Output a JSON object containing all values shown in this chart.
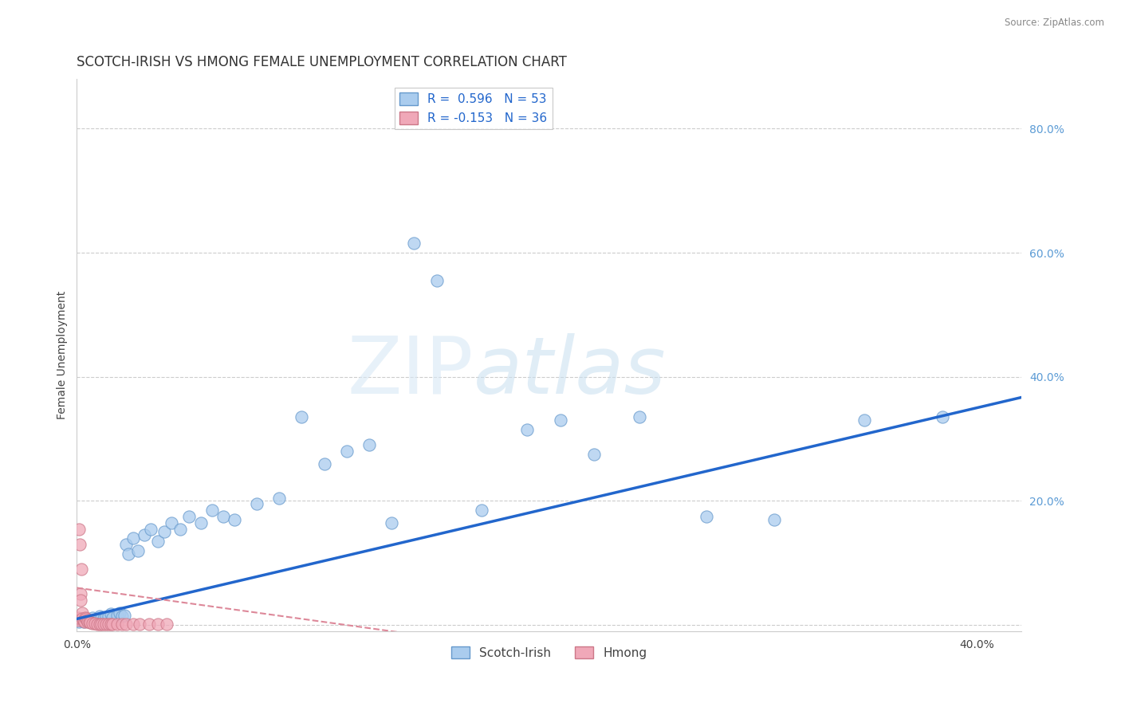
{
  "title": "SCOTCH-IRISH VS HMONG FEMALE UNEMPLOYMENT CORRELATION CHART",
  "source": "Source: ZipAtlas.com",
  "ylabel": "Female Unemployment",
  "xlim": [
    0.0,
    0.42
  ],
  "ylim": [
    -0.01,
    0.88
  ],
  "background_color": "#ffffff",
  "grid_color": "#cccccc",
  "scotch_irish_color": "#aaccee",
  "hmong_color": "#f0a8b8",
  "scotch_irish_edge": "#6699cc",
  "hmong_edge": "#cc7788",
  "trend_blue": "#2266cc",
  "trend_pink": "#dd8899",
  "R_blue": 0.596,
  "N_blue": 53,
  "R_pink": -0.153,
  "N_pink": 36,
  "title_fontsize": 12,
  "axis_label_fontsize": 10,
  "tick_fontsize": 10,
  "legend_fontsize": 11,
  "scotch_irish_x": [
    0.001,
    0.002,
    0.003,
    0.004,
    0.005,
    0.006,
    0.007,
    0.008,
    0.009,
    0.01,
    0.011,
    0.012,
    0.013,
    0.014,
    0.015,
    0.016,
    0.018,
    0.019,
    0.02,
    0.021,
    0.022,
    0.023,
    0.025,
    0.027,
    0.03,
    0.033,
    0.036,
    0.039,
    0.042,
    0.046,
    0.05,
    0.055,
    0.06,
    0.065,
    0.07,
    0.08,
    0.09,
    0.1,
    0.11,
    0.12,
    0.13,
    0.14,
    0.15,
    0.16,
    0.18,
    0.2,
    0.215,
    0.23,
    0.25,
    0.28,
    0.31,
    0.35,
    0.385
  ],
  "scotch_irish_y": [
    0.005,
    0.008,
    0.006,
    0.01,
    0.009,
    0.007,
    0.012,
    0.008,
    0.01,
    0.015,
    0.012,
    0.01,
    0.013,
    0.015,
    0.018,
    0.012,
    0.016,
    0.02,
    0.014,
    0.016,
    0.13,
    0.115,
    0.14,
    0.12,
    0.145,
    0.155,
    0.135,
    0.15,
    0.165,
    0.155,
    0.175,
    0.165,
    0.185,
    0.175,
    0.17,
    0.195,
    0.205,
    0.335,
    0.26,
    0.28,
    0.29,
    0.165,
    0.615,
    0.555,
    0.185,
    0.315,
    0.33,
    0.275,
    0.335,
    0.175,
    0.17,
    0.33,
    0.335
  ],
  "hmong_x": [
    0.0003,
    0.0005,
    0.0007,
    0.001,
    0.0013,
    0.0015,
    0.0018,
    0.002,
    0.0023,
    0.0025,
    0.003,
    0.0033,
    0.0036,
    0.004,
    0.0045,
    0.005,
    0.0055,
    0.006,
    0.007,
    0.008,
    0.009,
    0.01,
    0.011,
    0.012,
    0.013,
    0.014,
    0.015,
    0.016,
    0.018,
    0.02,
    0.022,
    0.025,
    0.028,
    0.032,
    0.036,
    0.04
  ],
  "hmong_y": [
    0.01,
    0.008,
    0.012,
    0.155,
    0.13,
    0.05,
    0.04,
    0.09,
    0.02,
    0.01,
    0.008,
    0.006,
    0.012,
    0.01,
    0.008,
    0.006,
    0.005,
    0.004,
    0.003,
    0.003,
    0.002,
    0.002,
    0.002,
    0.002,
    0.002,
    0.002,
    0.002,
    0.002,
    0.002,
    0.002,
    0.002,
    0.002,
    0.002,
    0.002,
    0.002,
    0.002
  ]
}
